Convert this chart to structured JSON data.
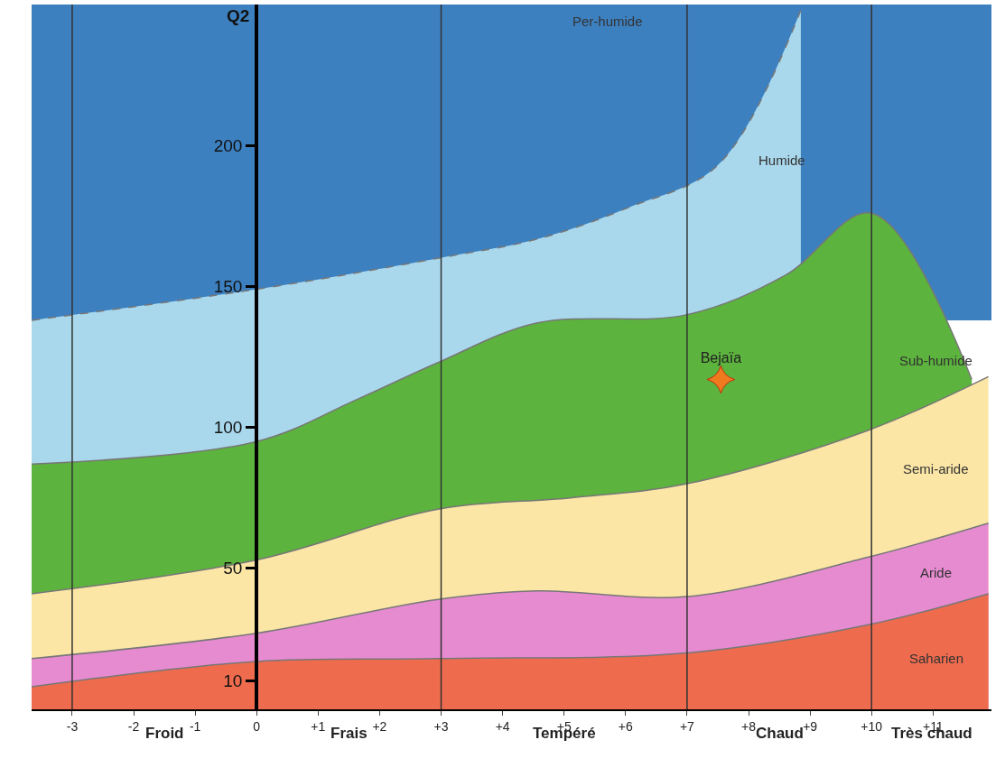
{
  "chart_data": {
    "type": "area",
    "ylabel": "Q2",
    "xlim": [
      -3.66,
      11.95
    ],
    "ylim": [
      0,
      250
    ],
    "xticks": [
      {
        "value": -3,
        "label": "-3"
      },
      {
        "value": -2,
        "label": "-2"
      },
      {
        "value": -1,
        "label": "-1"
      },
      {
        "value": 0,
        "label": "0"
      },
      {
        "value": 1,
        "label": "+1"
      },
      {
        "value": 2,
        "label": "+2"
      },
      {
        "value": 3,
        "label": "+3"
      },
      {
        "value": 4,
        "label": "+4"
      },
      {
        "value": 5,
        "label": "+5"
      },
      {
        "value": 6,
        "label": "+6"
      },
      {
        "value": 7,
        "label": "+7"
      },
      {
        "value": 8,
        "label": "+8"
      },
      {
        "value": 9,
        "label": "+9"
      },
      {
        "value": 10,
        "label": "+10"
      },
      {
        "value": 11,
        "label": "+11"
      }
    ],
    "yticks": [
      10,
      50,
      100,
      150,
      200
    ],
    "series": [
      {
        "name": "Humide",
        "color": "#a9d8ec",
        "line_style": "dashed",
        "x": [
          -3.66,
          0,
          2.95,
          4.6,
          6.05,
          7.5,
          8.85
        ],
        "values": [
          138,
          149,
          160,
          167,
          178,
          193,
          248
        ]
      },
      {
        "name": "Sub-humide",
        "color": "#5cb33d",
        "x": [
          -3.66,
          0,
          1.64,
          2.95,
          4.55,
          7,
          8.6,
          10,
          11.63
        ],
        "values": [
          87,
          95,
          110,
          123,
          137,
          140,
          154,
          176,
          117
        ]
      },
      {
        "name": "Semi-aride",
        "color": "#fbe6a6",
        "x": [
          -3.66,
          0,
          2.95,
          5.1,
          7,
          9.95,
          11.9
        ],
        "values": [
          41,
          53,
          71,
          75,
          80,
          99,
          118
        ]
      },
      {
        "name": "Aride",
        "color": "#e78bd1",
        "x": [
          -3.66,
          0,
          2.95,
          4.55,
          7,
          9.95,
          11.9
        ],
        "values": [
          18,
          27,
          39,
          42,
          40,
          54,
          66
        ]
      },
      {
        "name": "Saharien",
        "color": "#ee6b4e",
        "x": [
          -3.66,
          0,
          2.95,
          7,
          9.95,
          11.9
        ],
        "values": [
          8,
          17,
          18,
          20,
          30,
          41
        ]
      },
      {
        "type": "scatter",
        "name": "Bejaïa",
        "color": "#f07a1e",
        "marker": "star",
        "x": [
          7.55
        ],
        "values": [
          117
        ]
      }
    ],
    "bands": [
      {
        "axis": "y",
        "from": 138,
        "to": 250,
        "color": "#3d80c0",
        "label": "Per-humide"
      }
    ],
    "ref_lines": [
      {
        "axis": "x",
        "value": -3
      },
      {
        "axis": "x",
        "value": 3
      },
      {
        "axis": "x",
        "value": 7
      },
      {
        "axis": "x",
        "value": 10
      }
    ],
    "annotations": [
      "Froid",
      "Frais",
      "Tempéré",
      "Chaud",
      "Très chaud"
    ],
    "grid": false
  }
}
